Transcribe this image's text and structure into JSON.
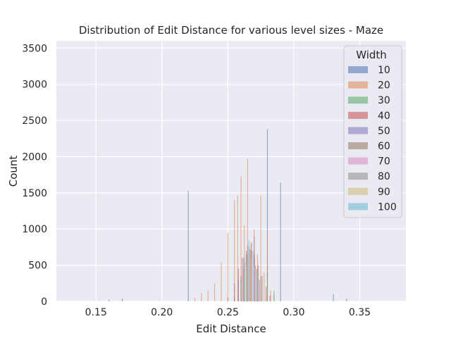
{
  "chart_data": {
    "type": "bar",
    "title": "Distribution of Edit Distance for various level sizes - Maze",
    "xlabel": "Edit Distance",
    "ylabel": "Count",
    "xlim": [
      0.12,
      0.385
    ],
    "ylim": [
      0,
      3600
    ],
    "xticks": [
      0.15,
      0.2,
      0.25,
      0.3,
      0.35
    ],
    "xtick_labels": [
      "0.15",
      "0.20",
      "0.25",
      "0.30",
      "0.35"
    ],
    "yticks": [
      0,
      500,
      1000,
      1500,
      2000,
      2500,
      3000,
      3500
    ],
    "ytick_labels": [
      "0",
      "500",
      "1000",
      "1500",
      "2000",
      "2500",
      "3000",
      "3500"
    ],
    "grid": true,
    "legend": {
      "title": "Width",
      "placement": "top-right"
    },
    "series": [
      {
        "name": "10",
        "color": "#4c72b0",
        "bars": [
          [
            0.16,
            20
          ],
          [
            0.17,
            40
          ],
          [
            0.22,
            1530
          ],
          [
            0.27,
            900
          ],
          [
            0.28,
            2380
          ],
          [
            0.29,
            1640
          ],
          [
            0.33,
            100
          ],
          [
            0.34,
            40
          ]
        ]
      },
      {
        "name": "20",
        "color": "#dd8452",
        "bars": [
          [
            0.225,
            50
          ],
          [
            0.23,
            120
          ],
          [
            0.235,
            150
          ],
          [
            0.24,
            250
          ],
          [
            0.245,
            540
          ],
          [
            0.25,
            950
          ],
          [
            0.255,
            1400
          ],
          [
            0.2575,
            1460
          ],
          [
            0.26,
            1730
          ],
          [
            0.2625,
            1050
          ],
          [
            0.265,
            1970
          ],
          [
            0.2675,
            800
          ],
          [
            0.27,
            1000
          ],
          [
            0.2725,
            650
          ],
          [
            0.275,
            1460
          ],
          [
            0.2775,
            400
          ],
          [
            0.28,
            980
          ],
          [
            0.2825,
            150
          ],
          [
            0.285,
            100
          ]
        ]
      },
      {
        "name": "30",
        "color": "#55a868",
        "bars": [
          [
            0.255,
            60
          ],
          [
            0.26,
            300
          ],
          [
            0.265,
            650
          ],
          [
            0.27,
            600
          ],
          [
            0.275,
            350
          ],
          [
            0.28,
            400
          ],
          [
            0.285,
            150
          ]
        ]
      },
      {
        "name": "40",
        "color": "#c44e52",
        "bars": [
          [
            0.25,
            50
          ],
          [
            0.255,
            250
          ],
          [
            0.258,
            450
          ],
          [
            0.261,
            600
          ],
          [
            0.264,
            700
          ],
          [
            0.267,
            720
          ],
          [
            0.27,
            650
          ],
          [
            0.273,
            500
          ],
          [
            0.276,
            350
          ],
          [
            0.279,
            200
          ],
          [
            0.282,
            80
          ]
        ]
      },
      {
        "name": "50",
        "color": "#8172b3",
        "bars": [
          [
            0.258,
            300
          ],
          [
            0.262,
            600
          ],
          [
            0.266,
            760
          ],
          [
            0.27,
            600
          ],
          [
            0.274,
            300
          ]
        ]
      },
      {
        "name": "60",
        "color": "#937860",
        "bars": [
          [
            0.26,
            350
          ],
          [
            0.264,
            650
          ],
          [
            0.268,
            700
          ],
          [
            0.272,
            450
          ]
        ]
      },
      {
        "name": "70",
        "color": "#da8bc3",
        "bars": [
          [
            0.262,
            400
          ],
          [
            0.266,
            620
          ],
          [
            0.27,
            500
          ]
        ]
      },
      {
        "name": "80",
        "color": "#8c8c8c",
        "bars": [
          [
            0.262,
            450
          ],
          [
            0.265,
            780
          ],
          [
            0.268,
            820
          ],
          [
            0.271,
            500
          ]
        ]
      },
      {
        "name": "90",
        "color": "#ccb974",
        "bars": [
          [
            0.264,
            500
          ],
          [
            0.268,
            600
          ]
        ]
      },
      {
        "name": "100",
        "color": "#64b5cd",
        "bars": [
          [
            0.263,
            550
          ],
          [
            0.266,
            850
          ],
          [
            0.269,
            700
          ],
          [
            0.272,
            400
          ]
        ]
      }
    ]
  }
}
